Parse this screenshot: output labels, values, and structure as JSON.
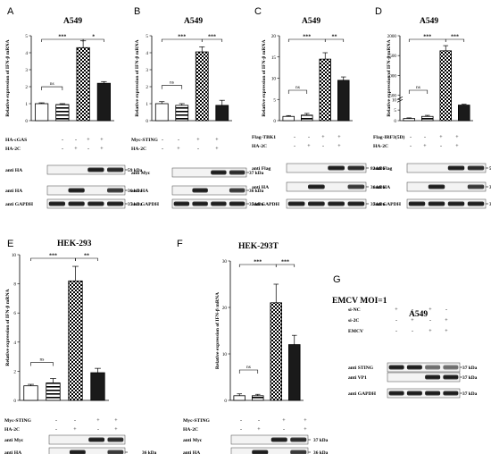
{
  "panels": [
    {
      "letter": "A",
      "title": "A549",
      "ylabel": "Relative expression of IFN-β mRNA",
      "ticks": [
        "0",
        "1",
        "2",
        "3",
        "4",
        "5"
      ],
      "ylim": [
        0,
        5
      ],
      "sig": [
        "ns",
        "***",
        "*"
      ],
      "rows": [
        {
          "label": "HA-cGAS",
          "signs": [
            "-",
            "-",
            "+",
            "+"
          ]
        },
        {
          "label": "HA-2C",
          "signs": [
            "-",
            "+",
            "-",
            "+"
          ]
        }
      ],
      "blots": [
        {
          "label": "anti HA",
          "kda": "59 kDa"
        },
        {
          "label": "anti HA",
          "kda": "36 kDa"
        },
        {
          "label": "anti GAPDH",
          "kda": "37 kDa"
        }
      ]
    },
    {
      "letter": "B",
      "title": "A549",
      "ylabel": "Relative expression of IFN-β mRNA",
      "ticks": [
        "0",
        "1",
        "2",
        "3",
        "4",
        "5"
      ],
      "ylim": [
        0,
        5
      ],
      "sig": [
        "ns",
        "***",
        "***"
      ],
      "rows": [
        {
          "label": "Myc-STING",
          "signs": [
            "-",
            "-",
            "+",
            "+"
          ]
        },
        {
          "label": "HA-2C",
          "signs": [
            "-",
            "+",
            "-",
            "+"
          ]
        }
      ],
      "blots": [
        {
          "label": "anti Myc",
          "kda": "37 kDa"
        },
        {
          "label": "anti HA",
          "kda": "36 kDa"
        },
        {
          "label": "anti GAPDH",
          "kda": "37 kDa"
        }
      ]
    },
    {
      "letter": "C",
      "title": "A549",
      "ylabel": "Relative expression of IFN-β mRNA",
      "ticks": [
        "0",
        "5",
        "10",
        "15",
        "20"
      ],
      "ylim": [
        0,
        20
      ],
      "sig": [
        "ns",
        "***",
        "**"
      ],
      "rows": [
        {
          "label": "Flag-TBK1",
          "signs": [
            "-",
            "-",
            "+",
            "+"
          ]
        },
        {
          "label": "HA-2C",
          "signs": [
            "-",
            "+",
            "-",
            "+"
          ]
        }
      ],
      "blots": [
        {
          "label": "anti Flag",
          "kda": "83 kDa"
        },
        {
          "label": "anti HA",
          "kda": "36 kDa"
        },
        {
          "label": "anti GAPDH",
          "kda": "37 kDa"
        }
      ]
    },
    {
      "letter": "D",
      "title": "A549",
      "ylabel": "Relative expression of IFN-β mRNA",
      "ticks": [
        "0",
        "5",
        "10",
        "500",
        "1000",
        "1500",
        "2000"
      ],
      "ylim": [
        0,
        2000
      ],
      "sig": [
        "ns",
        "***",
        "***"
      ],
      "rows": [
        {
          "label": "Flag-IRF3(5D)",
          "signs": [
            "-",
            "-",
            "+",
            "+"
          ]
        },
        {
          "label": "HA-2C",
          "signs": [
            "-",
            "+",
            "-",
            "+"
          ]
        }
      ],
      "blots": [
        {
          "label": "anti Flag",
          "kda": "55 kDa"
        },
        {
          "label": "anti HA",
          "kda": "36 kDa"
        },
        {
          "label": "anti GAPDH",
          "kda": "37 kDa"
        }
      ]
    },
    {
      "letter": "E",
      "title": "HEK-293",
      "ylabel": "Relative expression of IFN-β mRNA",
      "ticks": [
        "0",
        "2",
        "4",
        "6",
        "8",
        "10"
      ],
      "ylim": [
        0,
        10
      ],
      "sig": [
        "ns",
        "***",
        "**"
      ],
      "rows": [
        {
          "label": "Myc-STING",
          "signs": [
            "-",
            "-",
            "+",
            "+"
          ]
        },
        {
          "label": "HA-2C",
          "signs": [
            "-",
            "+",
            "-",
            "+"
          ]
        }
      ],
      "blots": [
        {
          "label": "anti Myc",
          "kda": ""
        },
        {
          "label": "anti HA",
          "kda": "36 kDa"
        },
        {
          "label": "anti GAPDH",
          "kda": ""
        }
      ]
    },
    {
      "letter": "F",
      "title": "HEK-293T",
      "ylabel": "Relative expression of IFN-β mRNA",
      "ticks": [
        "0",
        "10",
        "20",
        "30"
      ],
      "ylim": [
        0,
        30
      ],
      "sig": [
        "ns",
        "***",
        "***"
      ],
      "rows": [
        {
          "label": "Myc-STING",
          "signs": [
            "-",
            "-",
            "+",
            "+"
          ]
        },
        {
          "label": "HA-2C",
          "signs": [
            "-",
            "+",
            "-",
            "+"
          ]
        }
      ],
      "blots": [
        {
          "label": "anti Myc",
          "kda": "37 kDa"
        },
        {
          "label": "anti HA",
          "kda": "36 kDa"
        },
        {
          "label": "anti GAPDH",
          "kda": "37 kDa"
        }
      ]
    },
    {
      "letter": "G",
      "title": "A549",
      "ylabel": "",
      "ticks": [],
      "ylim": [
        0,
        1
      ],
      "sig": [],
      "rows": [
        {
          "label": "si-NC",
          "signs": [
            "+",
            "-",
            "+",
            "-"
          ]
        },
        {
          "label": "si-2C",
          "signs": [
            "-",
            "+",
            "-",
            "+"
          ]
        },
        {
          "label": "EMCV",
          "signs": [
            "-",
            "-",
            "+",
            "+"
          ]
        }
      ],
      "blots": [
        {
          "label": "anti STING",
          "kda": "37 kDa"
        },
        {
          "label": "anti VP1",
          "kda": "37 kDa"
        },
        {
          "label": "anti GAPDH",
          "kda": "37 kDa"
        }
      ]
    }
  ],
  "g_header": "EMCV MOI=1",
  "chart_data": [
    {
      "type": "bar",
      "panel": "A",
      "title": "A549",
      "ylabel": "Relative expression of IFN-β mRNA",
      "categories": [
        "1",
        "2",
        "3",
        "4"
      ],
      "values": [
        1.0,
        0.95,
        4.3,
        2.2
      ],
      "errors": [
        0.05,
        0.05,
        0.4,
        0.1
      ],
      "ylim": [
        0,
        5
      ]
    },
    {
      "type": "bar",
      "panel": "B",
      "title": "A549",
      "ylabel": "Relative expression of IFN-β mRNA",
      "categories": [
        "1",
        "2",
        "3",
        "4"
      ],
      "values": [
        1.0,
        0.9,
        4.05,
        0.9
      ],
      "errors": [
        0.12,
        0.1,
        0.3,
        0.3
      ],
      "ylim": [
        0,
        5
      ]
    },
    {
      "type": "bar",
      "panel": "C",
      "title": "A549",
      "ylabel": "Relative expression of IFN-β mRNA",
      "categories": [
        "1",
        "2",
        "3",
        "4"
      ],
      "values": [
        1.0,
        1.3,
        14.5,
        9.5
      ],
      "errors": [
        0.2,
        0.4,
        1.5,
        0.8
      ],
      "ylim": [
        0,
        20
      ]
    },
    {
      "type": "bar",
      "panel": "D",
      "title": "A549",
      "ylabel": "Relative expression of IFN-β mRNA",
      "categories": [
        "1",
        "2",
        "3",
        "4"
      ],
      "values": [
        1.0,
        2.0,
        1620,
        250
      ],
      "errors": [
        0.3,
        0.5,
        130,
        20
      ],
      "ylim": [
        0,
        2000
      ]
    },
    {
      "type": "bar",
      "panel": "E",
      "title": "HEK-293",
      "ylabel": "Relative expression of IFN-β mRNA",
      "categories": [
        "1",
        "2",
        "3",
        "4"
      ],
      "values": [
        1.0,
        1.2,
        8.2,
        1.9
      ],
      "errors": [
        0.1,
        0.3,
        1.0,
        0.3
      ],
      "ylim": [
        0,
        10
      ]
    },
    {
      "type": "bar",
      "panel": "F",
      "title": "HEK-293T",
      "ylabel": "Relative expression of IFN-β mRNA",
      "categories": [
        "1",
        "2",
        "3",
        "4"
      ],
      "values": [
        1.0,
        1.0,
        21.0,
        12.0
      ],
      "errors": [
        0.4,
        0.3,
        4.0,
        2.0
      ],
      "ylim": [
        0,
        30
      ]
    }
  ]
}
